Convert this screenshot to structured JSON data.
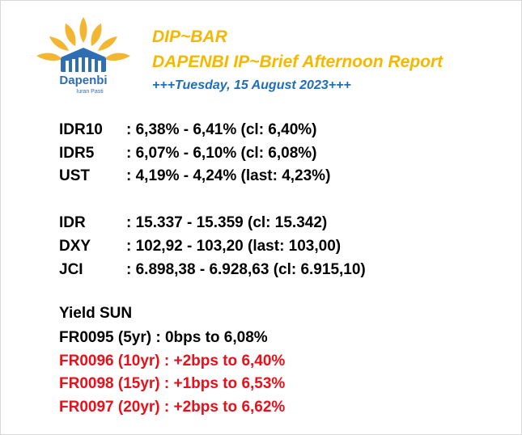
{
  "logo": {
    "name": "Dapenbi",
    "tagline": "Iuran Pasti"
  },
  "header": {
    "title": "DIP~BAR",
    "subtitle": "DAPENBI IP~Brief Afternoon Report",
    "date": "+++Tuesday, 15 August 2023+++"
  },
  "rates": [
    {
      "label": "IDR10",
      "value": ": 6,38% - 6,41% (cl: 6,40%)"
    },
    {
      "label": "IDR5",
      "value": ": 6,07% - 6,10% (cl: 6,08%)"
    },
    {
      "label": "UST",
      "value": ": 4,19% - 4,24% (last: 4,23%)"
    }
  ],
  "markets": [
    {
      "label": "IDR",
      "value": ": 15.337 - 15.359 (cl: 15.342)"
    },
    {
      "label": "DXY",
      "value": ": 102,92 - 103,20 (last: 103,00)"
    },
    {
      "label": "JCI",
      "value": ": 6.898,38 - 6.928,63 (cl: 6.915,10)"
    }
  ],
  "yield_sun": {
    "title": "Yield SUN",
    "lines": [
      "FR0095 (5yr)   : 0bps to 6,08%",
      "FR0096 (10yr) : +2bps to 6,40%",
      "FR0098 (15yr) : +1bps to 6,53%",
      "FR0097 (20yr) : +2bps to 6,62%"
    ]
  }
}
